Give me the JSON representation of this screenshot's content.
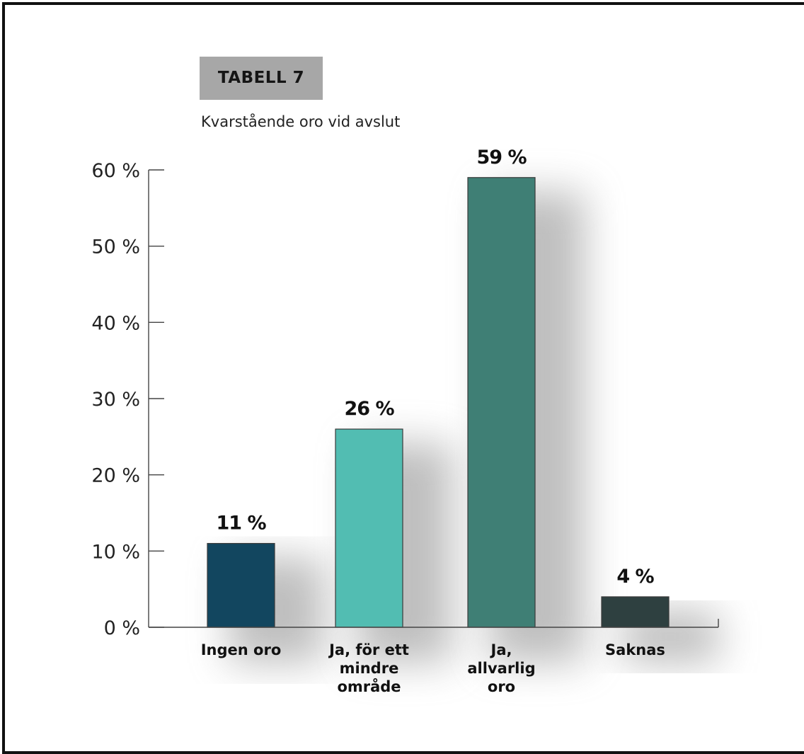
{
  "header": {
    "tag": "TABELL 7",
    "subtitle": "Kvarstående oro vid avslut"
  },
  "colors": {
    "background": "#ffffff",
    "frame": "#111111",
    "tag_bg": "#a7a7a7",
    "axis": "#444444",
    "bars": [
      "#12465f",
      "#52bdb2",
      "#3f7f75",
      "#2e4040"
    ]
  },
  "chart_data": {
    "type": "bar",
    "title": "Kvarstående oro vid avslut",
    "categories": [
      [
        "Ingen oro"
      ],
      [
        "Ja, för ett",
        "mindre",
        "område"
      ],
      [
        "Ja,",
        "allvarlig",
        "oro"
      ],
      [
        "Saknas"
      ]
    ],
    "values": [
      11,
      26,
      59,
      4
    ],
    "data_labels": [
      "11 %",
      "26 %",
      "59 %",
      "4 %"
    ],
    "ylim": [
      0,
      60
    ],
    "yticks": [
      0,
      10,
      20,
      30,
      40,
      50,
      60
    ],
    "ytick_labels": [
      "0 %",
      "10 %",
      "20 %",
      "30 %",
      "40 %",
      "50 %",
      "60 %"
    ],
    "xlabel": "",
    "ylabel": "",
    "grid": false,
    "legend": "none"
  }
}
